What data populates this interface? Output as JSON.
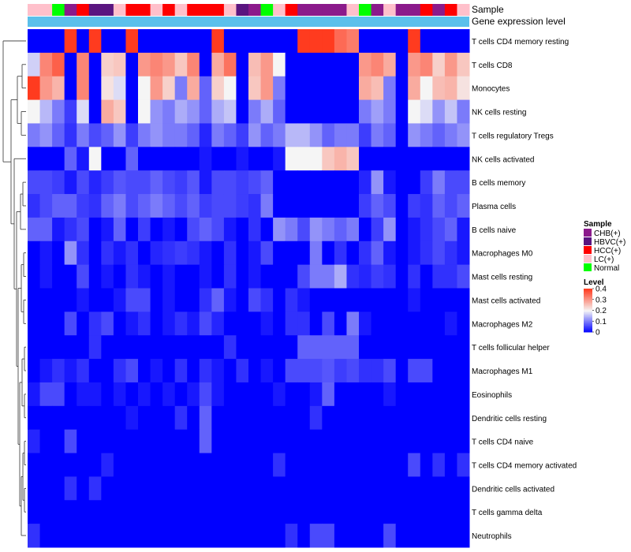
{
  "chart_data": {
    "type": "heatmap",
    "title": "",
    "annotation_labels": {
      "sample": "Sample",
      "expression": "Gene expression level"
    },
    "rows": [
      "T cells CD4 memory resting",
      "T cells CD8",
      "Monocytes",
      "NK cells resting",
      "T cells regulatory  Tregs",
      "NK cells activated",
      "B cells memory",
      "Plasma cells",
      "B cells naive",
      "Macrophages M0",
      "Mast cells resting",
      "Mast cells activated",
      "Macrophages M2",
      "T cells follicular helper",
      "Macrophages M1",
      "Eosinophils",
      "Dendritic cells resting",
      "T cells CD4 naive",
      "T cells CD4 memory activated",
      "Dendritic cells activated",
      "T cells gamma delta",
      "Neutrophils"
    ],
    "samples": [
      "LC(+)",
      "LC(+)",
      "Normal",
      "CHB(+)",
      "HCC(+)",
      "HBVC(+)",
      "HBVC(+)",
      "LC(+)",
      "HCC(+)",
      "HCC(+)",
      "LC(+)",
      "HCC(+)",
      "LC(+)",
      "HCC(+)",
      "HCC(+)",
      "HCC(+)",
      "LC(+)",
      "HBVC(+)",
      "CHB(+)",
      "Normal",
      "LC(+)",
      "HCC(+)",
      "CHB(+)",
      "CHB(+)",
      "CHB(+)",
      "CHB(+)",
      "LC(+)",
      "Normal",
      "CHB(+)",
      "LC(+)",
      "CHB(+)",
      "CHB(+)",
      "HCC(+)",
      "CHB(+)",
      "HCC(+)",
      "LC(+)"
    ],
    "values": [
      [
        0.0,
        0.0,
        0.0,
        0.4,
        0.0,
        0.4,
        0.0,
        0.0,
        0.4,
        0.0,
        0.0,
        0.0,
        0.0,
        0.0,
        0.0,
        0.4,
        0.0,
        0.0,
        0.0,
        0.0,
        0.0,
        0.0,
        0.4,
        0.4,
        0.4,
        0.35,
        0.33,
        0.0,
        0.0,
        0.0,
        0.0,
        0.4,
        0.0,
        0.0,
        0.0,
        0.0
      ],
      [
        0.17,
        0.32,
        0.36,
        0.0,
        0.32,
        0.0,
        0.24,
        0.25,
        0.0,
        0.3,
        0.32,
        0.3,
        0.25,
        0.32,
        0.0,
        0.28,
        0.34,
        0.0,
        0.26,
        0.3,
        0.2,
        0.0,
        0.0,
        0.0,
        0.0,
        0.0,
        0.0,
        0.3,
        0.32,
        0.28,
        0.0,
        0.3,
        0.32,
        0.24,
        0.3,
        0.25
      ],
      [
        0.4,
        0.3,
        0.27,
        0.0,
        0.32,
        0.0,
        0.22,
        0.18,
        0.0,
        0.2,
        0.3,
        0.24,
        0.1,
        0.28,
        0.08,
        0.24,
        0.2,
        0.0,
        0.25,
        0.3,
        0.1,
        0.0,
        0.0,
        0.0,
        0.0,
        0.0,
        0.0,
        0.28,
        0.26,
        0.1,
        0.0,
        0.28,
        0.2,
        0.26,
        0.27,
        0.22
      ],
      [
        0.2,
        0.15,
        0.1,
        0.05,
        0.18,
        0.0,
        0.28,
        0.25,
        0.0,
        0.2,
        0.12,
        0.1,
        0.14,
        0.12,
        0.08,
        0.14,
        0.16,
        0.0,
        0.1,
        0.14,
        0.08,
        0.0,
        0.0,
        0.0,
        0.0,
        0.0,
        0.0,
        0.1,
        0.13,
        0.1,
        0.0,
        0.2,
        0.18,
        0.12,
        0.16,
        0.1
      ],
      [
        0.1,
        0.12,
        0.08,
        0.04,
        0.1,
        0.06,
        0.08,
        0.12,
        0.05,
        0.1,
        0.12,
        0.1,
        0.1,
        0.08,
        0.03,
        0.1,
        0.08,
        0.05,
        0.12,
        0.08,
        0.1,
        0.15,
        0.15,
        0.12,
        0.08,
        0.1,
        0.1,
        0.05,
        0.1,
        0.08,
        0.0,
        0.12,
        0.1,
        0.08,
        0.1,
        0.12
      ],
      [
        0.0,
        0.0,
        0.0,
        0.08,
        0.02,
        0.2,
        0.0,
        0.0,
        0.08,
        0.0,
        0.0,
        0.0,
        0.0,
        0.0,
        0.02,
        0.0,
        0.0,
        0.02,
        0.0,
        0.0,
        0.02,
        0.2,
        0.2,
        0.2,
        0.25,
        0.27,
        0.25,
        0.0,
        0.0,
        0.0,
        0.0,
        0.0,
        0.0,
        0.0,
        0.0,
        0.0
      ],
      [
        0.06,
        0.06,
        0.05,
        0.02,
        0.06,
        0.03,
        0.05,
        0.07,
        0.06,
        0.06,
        0.08,
        0.06,
        0.05,
        0.07,
        0.02,
        0.06,
        0.06,
        0.05,
        0.06,
        0.08,
        0.0,
        0.0,
        0.0,
        0.0,
        0.0,
        0.0,
        0.0,
        0.03,
        0.12,
        0.02,
        0.0,
        0.0,
        0.05,
        0.1,
        0.06,
        0.06
      ],
      [
        0.04,
        0.06,
        0.08,
        0.08,
        0.05,
        0.04,
        0.08,
        0.1,
        0.06,
        0.08,
        0.1,
        0.08,
        0.06,
        0.08,
        0.05,
        0.06,
        0.06,
        0.05,
        0.04,
        0.1,
        0.0,
        0.0,
        0.0,
        0.0,
        0.0,
        0.0,
        0.0,
        0.05,
        0.08,
        0.06,
        0.0,
        0.05,
        0.04,
        0.08,
        0.06,
        0.08
      ],
      [
        0.08,
        0.08,
        0.02,
        0.04,
        0.06,
        0.0,
        0.02,
        0.08,
        0.0,
        0.05,
        0.0,
        0.02,
        0.0,
        0.06,
        0.08,
        0.06,
        0.02,
        0.0,
        0.04,
        0.0,
        0.12,
        0.1,
        0.06,
        0.12,
        0.1,
        0.08,
        0.1,
        0.0,
        0.05,
        0.12,
        0.0,
        0.02,
        0.04,
        0.06,
        0.08,
        0.02
      ],
      [
        0.0,
        0.02,
        0.0,
        0.12,
        0.04,
        0.0,
        0.04,
        0.02,
        0.04,
        0.0,
        0.03,
        0.04,
        0.05,
        0.04,
        0.02,
        0.0,
        0.04,
        0.0,
        0.02,
        0.06,
        0.0,
        0.0,
        0.0,
        0.1,
        0.0,
        0.04,
        0.0,
        0.04,
        0.08,
        0.02,
        0.0,
        0.02,
        0.04,
        0.06,
        0.04,
        0.02
      ],
      [
        0.0,
        0.02,
        0.0,
        0.0,
        0.06,
        0.0,
        0.02,
        0.0,
        0.04,
        0.02,
        0.0,
        0.02,
        0.0,
        0.0,
        0.02,
        0.0,
        0.04,
        0.0,
        0.02,
        0.0,
        0.0,
        0.0,
        0.06,
        0.1,
        0.1,
        0.14,
        0.04,
        0.03,
        0.05,
        0.04,
        0.0,
        0.04,
        0.0,
        0.04,
        0.04,
        0.06
      ],
      [
        0.0,
        0.0,
        0.0,
        0.0,
        0.02,
        0.0,
        0.0,
        0.02,
        0.06,
        0.06,
        0.0,
        0.02,
        0.0,
        0.0,
        0.04,
        0.08,
        0.02,
        0.0,
        0.06,
        0.04,
        0.0,
        0.04,
        0.02,
        0.0,
        0.0,
        0.0,
        0.0,
        0.0,
        0.0,
        0.0,
        0.0,
        0.02,
        0.0,
        0.0,
        0.0,
        0.0
      ],
      [
        0.0,
        0.0,
        0.0,
        0.06,
        0.0,
        0.04,
        0.06,
        0.0,
        0.02,
        0.04,
        0.0,
        0.02,
        0.04,
        0.02,
        0.06,
        0.03,
        0.0,
        0.0,
        0.0,
        0.02,
        0.0,
        0.04,
        0.04,
        0.0,
        0.06,
        0.0,
        0.1,
        0.02,
        0.0,
        0.0,
        0.0,
        0.0,
        0.0,
        0.0,
        0.02,
        0.0
      ],
      [
        0.0,
        0.0,
        0.0,
        0.0,
        0.0,
        0.04,
        0.0,
        0.0,
        0.0,
        0.0,
        0.0,
        0.0,
        0.0,
        0.0,
        0.0,
        0.0,
        0.04,
        0.0,
        0.0,
        0.0,
        0.0,
        0.0,
        0.08,
        0.08,
        0.08,
        0.08,
        0.08,
        0.0,
        0.0,
        0.0,
        0.0,
        0.0,
        0.0,
        0.0,
        0.0,
        0.0
      ],
      [
        0.0,
        0.02,
        0.04,
        0.02,
        0.04,
        0.0,
        0.0,
        0.04,
        0.06,
        0.0,
        0.02,
        0.0,
        0.04,
        0.0,
        0.04,
        0.02,
        0.0,
        0.04,
        0.0,
        0.02,
        0.0,
        0.06,
        0.06,
        0.06,
        0.07,
        0.05,
        0.06,
        0.04,
        0.04,
        0.06,
        0.0,
        0.06,
        0.06,
        0.0,
        0.0,
        0.0
      ],
      [
        0.02,
        0.06,
        0.06,
        0.0,
        0.02,
        0.02,
        0.0,
        0.02,
        0.0,
        0.02,
        0.0,
        0.02,
        0.0,
        0.02,
        0.06,
        0.02,
        0.0,
        0.0,
        0.0,
        0.0,
        0.02,
        0.0,
        0.0,
        0.02,
        0.08,
        0.0,
        0.0,
        0.0,
        0.0,
        0.02,
        0.0,
        0.0,
        0.0,
        0.0,
        0.0,
        0.0
      ],
      [
        0.0,
        0.0,
        0.0,
        0.0,
        0.0,
        0.0,
        0.0,
        0.0,
        0.02,
        0.0,
        0.0,
        0.0,
        0.04,
        0.0,
        0.08,
        0.0,
        0.0,
        0.0,
        0.0,
        0.0,
        0.0,
        0.0,
        0.0,
        0.04,
        0.0,
        0.0,
        0.0,
        0.0,
        0.0,
        0.0,
        0.0,
        0.0,
        0.0,
        0.0,
        0.0,
        0.0
      ],
      [
        0.03,
        0.0,
        0.0,
        0.06,
        0.0,
        0.0,
        0.0,
        0.0,
        0.0,
        0.0,
        0.0,
        0.0,
        0.0,
        0.0,
        0.08,
        0.0,
        0.0,
        0.0,
        0.0,
        0.0,
        0.0,
        0.0,
        0.0,
        0.0,
        0.0,
        0.0,
        0.0,
        0.0,
        0.0,
        0.0,
        0.0,
        0.0,
        0.0,
        0.0,
        0.0,
        0.0
      ],
      [
        0.0,
        0.0,
        0.0,
        0.0,
        0.0,
        0.0,
        0.03,
        0.0,
        0.0,
        0.0,
        0.0,
        0.0,
        0.0,
        0.0,
        0.0,
        0.0,
        0.0,
        0.0,
        0.0,
        0.0,
        0.04,
        0.0,
        0.0,
        0.0,
        0.0,
        0.0,
        0.0,
        0.0,
        0.0,
        0.0,
        0.0,
        0.06,
        0.0,
        0.04,
        0.0,
        0.04
      ],
      [
        0.0,
        0.0,
        0.0,
        0.04,
        0.0,
        0.04,
        0.0,
        0.0,
        0.0,
        0.0,
        0.0,
        0.0,
        0.0,
        0.0,
        0.0,
        0.0,
        0.0,
        0.0,
        0.0,
        0.0,
        0.0,
        0.0,
        0.0,
        0.0,
        0.0,
        0.0,
        0.0,
        0.0,
        0.0,
        0.0,
        0.0,
        0.0,
        0.0,
        0.0,
        0.0,
        0.0
      ],
      [
        0.0,
        0.0,
        0.0,
        0.0,
        0.0,
        0.0,
        0.0,
        0.0,
        0.0,
        0.0,
        0.0,
        0.0,
        0.0,
        0.0,
        0.0,
        0.0,
        0.0,
        0.0,
        0.0,
        0.0,
        0.0,
        0.0,
        0.0,
        0.0,
        0.0,
        0.0,
        0.0,
        0.0,
        0.0,
        0.0,
        0.0,
        0.0,
        0.0,
        0.0,
        0.0,
        0.0
      ],
      [
        0.04,
        0.0,
        0.0,
        0.0,
        0.0,
        0.0,
        0.0,
        0.0,
        0.0,
        0.0,
        0.0,
        0.0,
        0.0,
        0.0,
        0.0,
        0.0,
        0.0,
        0.0,
        0.0,
        0.0,
        0.0,
        0.04,
        0.0,
        0.06,
        0.06,
        0.0,
        0.0,
        0.0,
        0.0,
        0.06,
        0.0,
        0.0,
        0.0,
        0.0,
        0.0,
        0.0
      ]
    ],
    "legend": {
      "sample_title": "Sample",
      "sample_entries": [
        {
          "label": "CHB(+)",
          "color": "#8B1A8B"
        },
        {
          "label": "HBVC(+)",
          "color": "#5A1580"
        },
        {
          "label": "HCC(+)",
          "color": "#FF0000"
        },
        {
          "label": "LC(+)",
          "color": "#FFC0CB"
        },
        {
          "label": "Normal",
          "color": "#00FF00"
        }
      ],
      "level_title": "Level",
      "level_ticks": [
        "0.4",
        "0.3",
        "0.2",
        "0.1",
        "0"
      ],
      "level_range": [
        0,
        0.4
      ]
    },
    "colors": {
      "low": "#0000FF",
      "mid": "#F5F5F5",
      "high": "#FF3B1F",
      "expression_bar": "#5BC0EB"
    }
  }
}
